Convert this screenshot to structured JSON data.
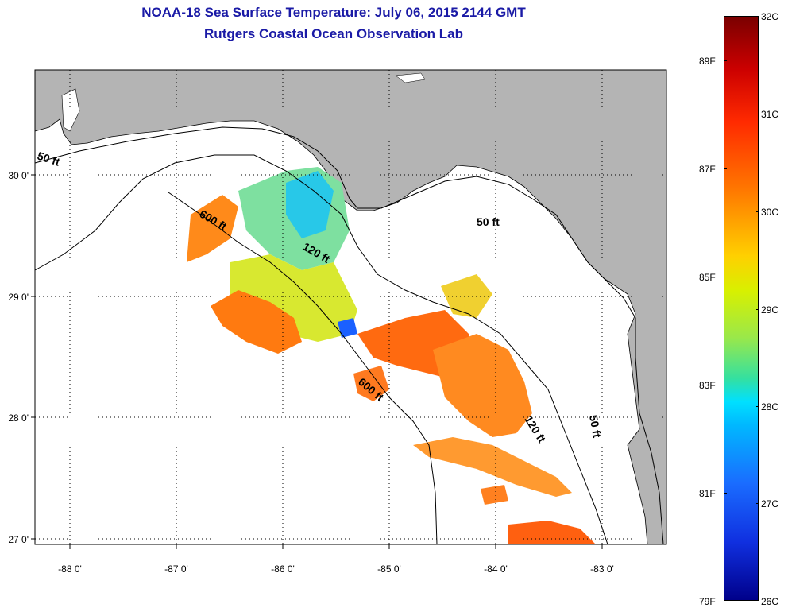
{
  "header": {
    "title": "NOAA-18 Sea Surface Temperature:  July 06, 2015 2144 GMT",
    "subtitle": "Rutgers Coastal Ocean Observation Lab"
  },
  "map": {
    "lat_labels": [
      "30 0'",
      "29 0'",
      "28 0'",
      "27 0'"
    ],
    "lon_labels": [
      "-88 0'",
      "-87 0'",
      "-86 0'",
      "-85 0'",
      "-84 0'",
      "-83 0'"
    ],
    "isobath_labels": [
      "50 ft",
      "600 ft",
      "120 ft",
      "50 ft",
      "600 ft",
      "120 ft",
      "50 ft"
    ]
  },
  "colorbar": {
    "celsius_labels": [
      "32C",
      "31C",
      "30C",
      "29C",
      "28C",
      "27C",
      "26C"
    ],
    "fahrenheit_labels": [
      "89F",
      "87F",
      "85F",
      "83F",
      "81F",
      "79F"
    ]
  },
  "colors": {
    "land": "#b4b4b4",
    "ocean": "#ffffff",
    "title_text": "#1a1aa6"
  }
}
